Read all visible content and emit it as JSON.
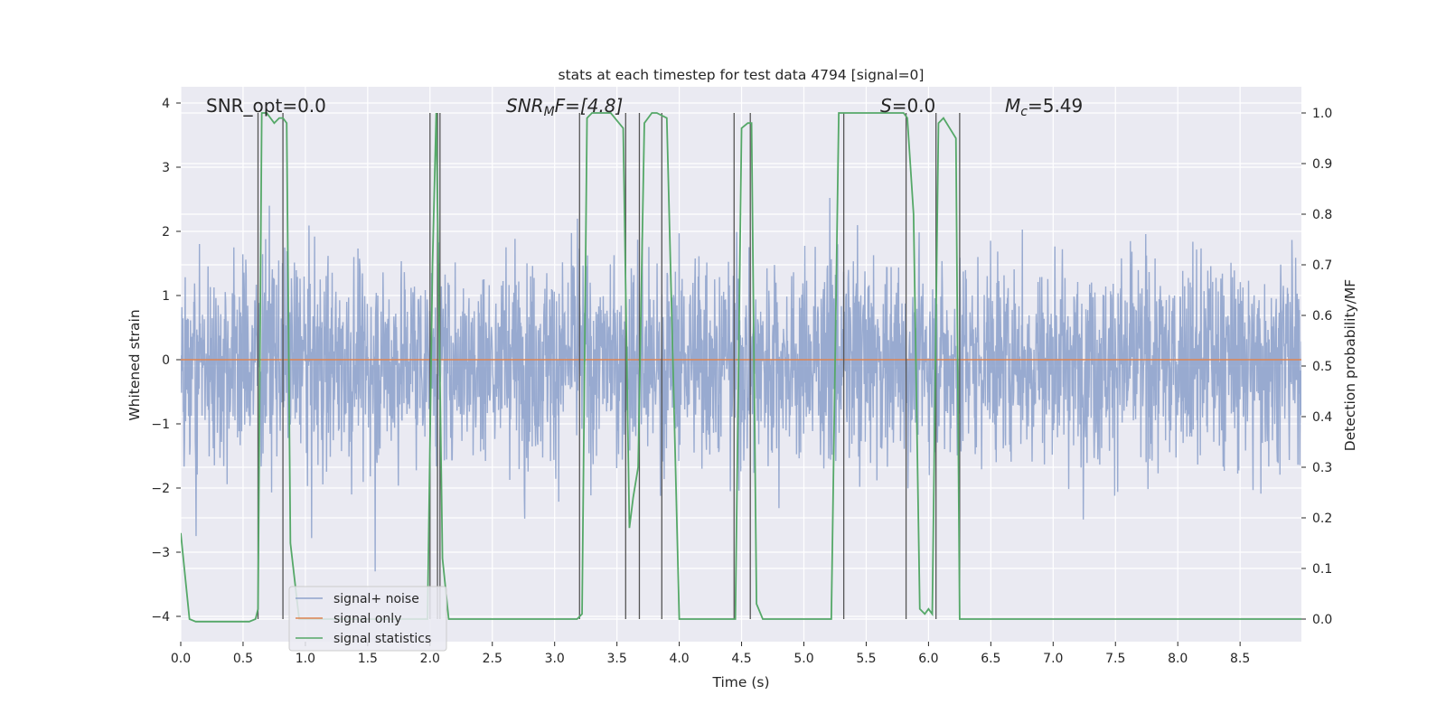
{
  "chart_data": {
    "type": "line",
    "title": "stats at each timestep for test data 4794 [signal=0]",
    "xlabel": "Time (s)",
    "ylabel": "Whitened strain",
    "y2label": "Detection probability/MF",
    "xlim": [
      0.0,
      9.0
    ],
    "ylim": [
      -4.2,
      4.2
    ],
    "y2lim": [
      -0.05,
      1.03
    ],
    "xticks": [
      "0.0",
      "0.5",
      "1.0",
      "1.5",
      "2.0",
      "2.5",
      "3.0",
      "3.5",
      "4.0",
      "4.5",
      "5.0",
      "5.5",
      "6.0",
      "6.5",
      "7.0",
      "7.5",
      "8.0",
      "8.5"
    ],
    "yticks": [
      "4",
      "3",
      "2",
      "1",
      "0",
      "−1",
      "−2",
      "−3",
      "−4"
    ],
    "y2ticks": [
      "1.0",
      "0.9",
      "0.8",
      "0.7",
      "0.6",
      "0.5",
      "0.4",
      "0.3",
      "0.2",
      "0.1",
      "0.0"
    ],
    "grid": true,
    "legend_position": "lower-left",
    "annotations": {
      "snr_opt": "SNR_opt=0.0",
      "snr_mf_base": "SNR",
      "snr_mf_sub": "M",
      "snr_mf_rest": "F=[4.8]",
      "s_label": "S",
      "s_value": "=0.0",
      "mc_base": "M",
      "mc_sub": "c",
      "mc_value": "=5.49"
    },
    "series": [
      {
        "name": "signal+ noise",
        "color": "#8fa3cc",
        "note_values": "dense noise, |strain| typically < 2, peaks to about 3.9"
      },
      {
        "name": "signal only",
        "color": "#dd8452",
        "values_constant": 0.0
      },
      {
        "name": "signal statistics",
        "color": "#55a868",
        "x": [
          0.0,
          0.07,
          0.12,
          0.55,
          0.6,
          0.62,
          0.65,
          0.69,
          0.72,
          0.75,
          0.79,
          0.82,
          0.85,
          0.88,
          0.95,
          1.0,
          1.9,
          1.98,
          2.02,
          2.05,
          2.1,
          2.15,
          2.2,
          2.25,
          3.15,
          3.18,
          3.22,
          3.26,
          3.3,
          3.45,
          3.55,
          3.6,
          3.63,
          3.67,
          3.72,
          3.78,
          3.82,
          3.9,
          3.95,
          4.0,
          4.05,
          4.1,
          4.15,
          4.4,
          4.45,
          4.5,
          4.55,
          4.58,
          4.62,
          4.67,
          4.75,
          5.0,
          5.22,
          5.28,
          5.35,
          5.5,
          5.7,
          5.8,
          5.83,
          5.88,
          5.93,
          5.97,
          6.0,
          6.03,
          6.08,
          6.12,
          6.17,
          6.22,
          6.25,
          6.28,
          6.32,
          6.4,
          6.5,
          8.0,
          9.0
        ],
        "y": [
          0.17,
          0.0,
          -0.005,
          -0.005,
          0.0,
          0.02,
          1.0,
          1.0,
          0.99,
          0.98,
          0.99,
          0.99,
          0.98,
          0.15,
          0.0,
          0.0,
          0.0,
          0.0,
          0.7,
          1.0,
          0.12,
          0.0,
          0.0,
          0.0,
          0.0,
          0.0,
          0.01,
          0.99,
          1.0,
          1.0,
          0.97,
          0.18,
          0.24,
          0.3,
          0.98,
          1.0,
          1.0,
          0.99,
          0.5,
          0.0,
          0.0,
          0.0,
          0.0,
          0.0,
          0.0,
          0.97,
          0.98,
          0.98,
          0.03,
          0.0,
          0.0,
          0.0,
          0.0,
          1.0,
          1.0,
          1.0,
          1.0,
          1.0,
          0.99,
          0.8,
          0.02,
          0.01,
          0.02,
          0.01,
          0.98,
          0.99,
          0.97,
          0.95,
          0.0,
          0.0,
          0.0,
          0.0,
          0.0,
          0.0,
          0.0
        ]
      }
    ],
    "threshold_crossings_x": [
      0.62,
      0.82,
      2.0,
      2.06,
      2.08,
      3.2,
      3.57,
      3.68,
      3.86,
      4.44,
      4.57,
      5.32,
      5.82,
      6.06,
      6.25
    ]
  }
}
